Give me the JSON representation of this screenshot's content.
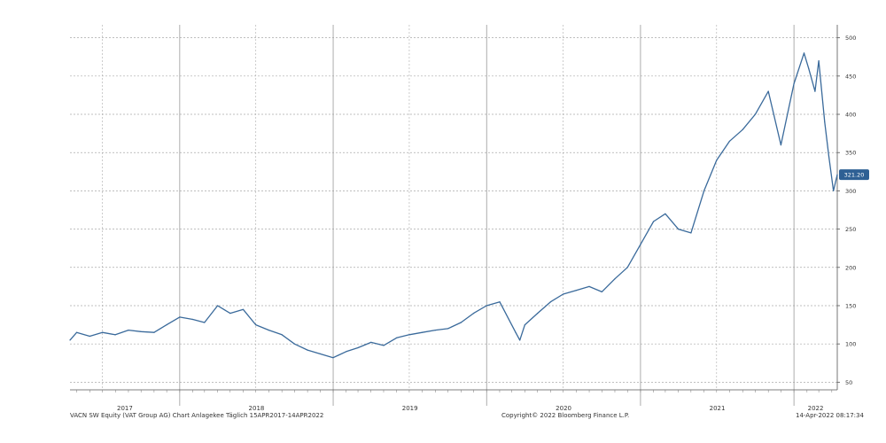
{
  "chart_data": {
    "type": "line",
    "title": "",
    "xlabel": "",
    "ylabel": "",
    "x_ticks": [
      "2017",
      "2018",
      "2019",
      "2020",
      "2021",
      "2022"
    ],
    "y_ticks": [
      50,
      100,
      150,
      200,
      250,
      300,
      350,
      400,
      450,
      500
    ],
    "ylim": [
      40,
      510
    ],
    "xlim": [
      "2017-04-15",
      "2022-04-14"
    ],
    "grid": true,
    "last_value_label": "321.20",
    "colors": {
      "line": "#3a6a9b",
      "last_value_bg": "#2e6094",
      "grid": "#aaaaaa"
    },
    "series": [
      {
        "x": [
          "2017-04-15",
          "2017-05-01",
          "2017-06-01",
          "2017-07-01",
          "2017-08-01",
          "2017-09-01",
          "2017-10-01",
          "2017-11-01",
          "2017-12-01",
          "2018-01-01",
          "2018-02-01",
          "2018-03-01",
          "2018-04-01",
          "2018-05-01",
          "2018-06-01",
          "2018-07-01",
          "2018-08-01",
          "2018-09-01",
          "2018-10-01",
          "2018-11-01",
          "2018-12-01",
          "2019-01-01",
          "2019-02-01",
          "2019-03-01",
          "2019-04-01",
          "2019-05-01",
          "2019-06-01",
          "2019-07-01",
          "2019-08-01",
          "2019-09-01",
          "2019-10-01",
          "2019-11-01",
          "2019-12-01",
          "2020-01-01",
          "2020-02-01",
          "2020-03-10",
          "2020-03-20",
          "2020-04-01",
          "2020-05-01",
          "2020-06-01",
          "2020-07-01",
          "2020-08-01",
          "2020-09-01",
          "2020-10-01",
          "2020-11-01",
          "2020-12-01",
          "2021-01-01",
          "2021-02-01",
          "2021-03-01",
          "2021-04-01",
          "2021-05-01",
          "2021-06-01",
          "2021-07-01",
          "2021-08-01",
          "2021-09-01",
          "2021-10-01",
          "2021-11-01",
          "2021-12-01",
          "2022-01-01",
          "2022-01-25",
          "2022-02-05",
          "2022-02-20",
          "2022-03-01",
          "2022-03-15",
          "2022-03-25",
          "2022-04-05",
          "2022-04-14"
        ],
        "values": [
          105,
          115,
          110,
          115,
          112,
          118,
          116,
          115,
          125,
          135,
          132,
          128,
          150,
          140,
          145,
          125,
          118,
          112,
          100,
          92,
          87,
          82,
          90,
          95,
          102,
          98,
          108,
          112,
          115,
          118,
          120,
          128,
          140,
          150,
          155,
          115,
          105,
          125,
          140,
          155,
          165,
          170,
          175,
          168,
          185,
          200,
          230,
          260,
          270,
          250,
          245,
          300,
          340,
          365,
          380,
          400,
          430,
          360,
          440,
          480,
          460,
          430,
          470,
          390,
          345,
          300,
          321.2
        ]
      }
    ]
  },
  "footer": {
    "left_text": "VACN SW Equity (VAT Group AG) Chart Anlagekee  Täglich 15APR2017-14APR2022",
    "center_text": "Copyright© 2022 Bloomberg Finance L.P.",
    "right_text": "14-Apr-2022 08:17:34"
  }
}
